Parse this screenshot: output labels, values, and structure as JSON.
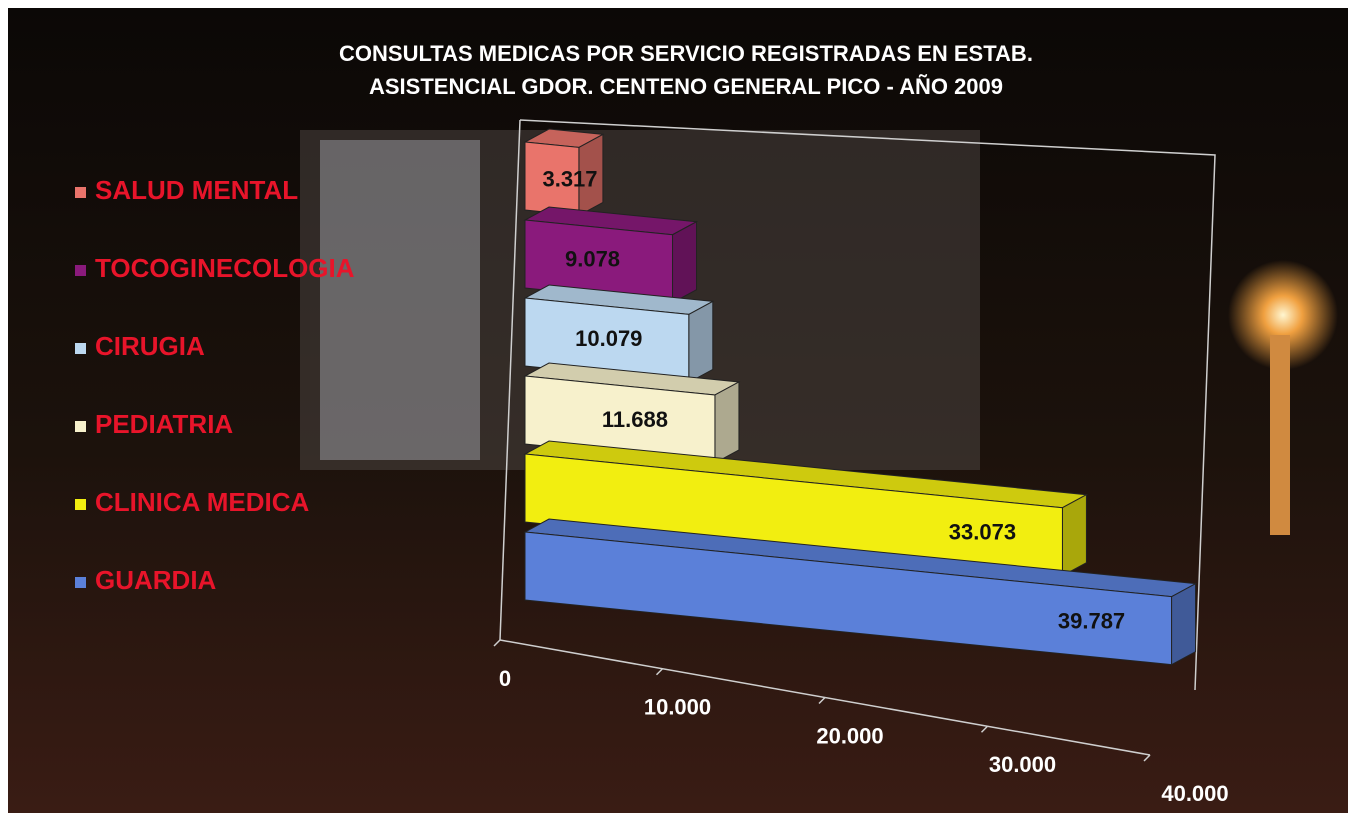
{
  "chart_data": {
    "type": "bar3d",
    "title": [
      "CONSULTAS MEDICAS POR SERVICIO REGISTRADAS EN ESTAB.",
      "ASISTENCIAL GDOR. CENTENO GENERAL PICO - AÑO 2009"
    ],
    "categories": [
      "SALUD MENTAL",
      "TOCOGINECOLOGIA",
      "CIRUGIA",
      "PEDIATRIA",
      "CLINICA MEDICA",
      "GUARDIA"
    ],
    "values": [
      3317,
      9078,
      10079,
      11688,
      33073,
      39787
    ],
    "value_labels": [
      "3.317",
      "9.078",
      "10.079",
      "11.688",
      "33.073",
      "39.787"
    ],
    "colors": [
      "#e9746b",
      "#8a1a7c",
      "#bcd8f0",
      "#f7f1cc",
      "#f2ee10",
      "#5b80d9"
    ],
    "xlim": [
      0,
      40000
    ],
    "xticks": [
      0,
      {
        "value": 10000,
        "label": "10.000"
      },
      {
        "value": 20000,
        "label": "20.000"
      },
      {
        "value": 30000,
        "label": "30.000"
      },
      {
        "value": 40000,
        "label": "40.000"
      }
    ]
  }
}
